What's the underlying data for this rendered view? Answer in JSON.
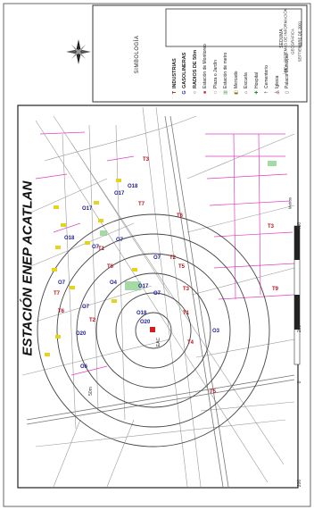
{
  "map": {
    "title": "ESTACIÓN ENEP ACATLAN",
    "ring_label": "50m",
    "station_label": "EAC"
  },
  "legend": {
    "heading": "SIMBOLOGÍA",
    "items": [
      {
        "symbol": "T",
        "color": "#b4141e",
        "label": "INDUSTRIAS",
        "bold": true
      },
      {
        "symbol": "G",
        "color": "#1e1e96",
        "label": "GASOLINERAS",
        "bold": true
      },
      {
        "symbol": "○",
        "color": "#222222",
        "label": "RADIOS DE 50m",
        "bold": true
      },
      {
        "symbol": "■",
        "color": "#d21e1e",
        "label": "Estación de Monitoreo",
        "bold": false
      },
      {
        "symbol": "□",
        "color": "#888888",
        "label": "Plaza o Jardín",
        "bold": false
      },
      {
        "symbol": "▥",
        "color": "#3c9c3c",
        "label": "Estación de metro",
        "bold": false
      },
      {
        "symbol": "◧",
        "color": "#8b6914",
        "label": "Mercado",
        "bold": false
      },
      {
        "symbol": "⌂",
        "color": "#3a3a3a",
        "label": "Escuela",
        "bold": false
      },
      {
        "symbol": "✚",
        "color": "#1e8f1e",
        "label": "Hospital",
        "bold": false
      },
      {
        "symbol": "†",
        "color": "#3a3a3a",
        "label": "Cementerio",
        "bold": false
      },
      {
        "symbol": "⛪",
        "color": "#3a3a3a",
        "label": "Iglesia",
        "bold": false
      },
      {
        "symbol": "▯",
        "color": "#3a3a3a",
        "label": "Palacio Municipal",
        "bold": false
      }
    ]
  },
  "credits": {
    "org": "SEDUMA",
    "area": "ÁREA: SISTEMAS DE INFORMACIÓN",
    "dept": "GEOGRÁFICA",
    "date": "SEPTIEMBRE DE 2001"
  },
  "scale": {
    "unit": "Metros",
    "ticks": [
      "200",
      "0",
      "200",
      "400"
    ]
  },
  "markers": {
    "industry": [
      "T1",
      "T2",
      "T3",
      "T4",
      "T5",
      "T6",
      "T7",
      "T8",
      "T9",
      "T1",
      "T2",
      "T3",
      "T5",
      "T6",
      "T7",
      "T4"
    ],
    "gas": [
      "O7",
      "O17",
      "O18",
      "O7",
      "O7",
      "O4",
      "O20",
      "O17",
      "O18",
      "O6",
      "O3",
      "O20",
      "O7",
      "O7",
      "O18",
      "O17",
      "O7"
    ]
  }
}
